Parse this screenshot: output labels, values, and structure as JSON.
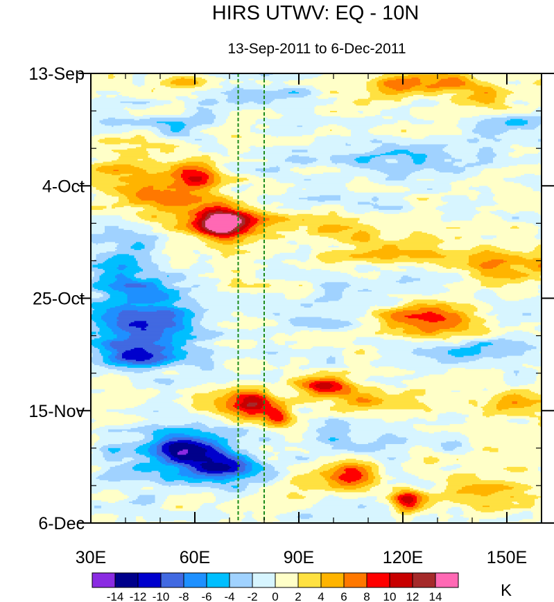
{
  "chart_data": {
    "type": "heatmap",
    "title": "HIRS UTWV: EQ - 10N",
    "subtitle": "13-Sep-2011 to 6-Dec-2011",
    "xlabel": "",
    "ylabel": "",
    "x_range": [
      30,
      160
    ],
    "x_ticks": [
      {
        "value": 30,
        "label": "30E"
      },
      {
        "value": 60,
        "label": "60E"
      },
      {
        "value": 90,
        "label": "90E"
      },
      {
        "value": 120,
        "label": "120E"
      },
      {
        "value": 150,
        "label": "150E"
      }
    ],
    "y_range_days": [
      0,
      84
    ],
    "y_direction": "time increases downward",
    "y_ticks": [
      {
        "day": 0,
        "label": "13-Sep"
      },
      {
        "day": 21,
        "label": "4-Oct"
      },
      {
        "day": 42,
        "label": "25-Oct"
      },
      {
        "day": 63,
        "label": "15-Nov"
      },
      {
        "day": 84,
        "label": "6-Dec"
      }
    ],
    "reference_lines": [
      {
        "lon": 72.5,
        "style": "dashed",
        "color": "#1a8a1a"
      },
      {
        "lon": 80,
        "style": "dashed",
        "color": "#1a8a1a"
      }
    ],
    "colorbar": {
      "units": "K",
      "levels": [
        -14,
        -12,
        -10,
        -8,
        -6,
        -4,
        -2,
        0,
        2,
        4,
        6,
        8,
        10,
        12,
        14
      ],
      "labels": [
        "-14",
        "-12",
        "-10",
        "-8",
        "-6",
        "-4",
        "-2",
        "0",
        "2",
        "4",
        "6",
        "8",
        "10",
        "12",
        "14"
      ],
      "colors": [
        "#8a2be2",
        "#00008b",
        "#0000cd",
        "#4169e1",
        "#1e90ff",
        "#00bfff",
        "#a0d2ff",
        "#d7f5ff",
        "#ffffc8",
        "#ffe141",
        "#ffb400",
        "#ff7800",
        "#ff0000",
        "#c80000",
        "#a52a2a",
        "#ff69b4"
      ]
    },
    "anomaly_features": [
      {
        "lon": 68,
        "day": 28,
        "sigma_lon": 5,
        "sigma_day": 2,
        "amp": 15.5
      },
      {
        "lon": 67,
        "day": 28,
        "sigma_lon": 9,
        "sigma_day": 3.5,
        "amp": 3
      },
      {
        "lon": 79,
        "day": 27.5,
        "sigma_lon": 5,
        "sigma_day": 1.2,
        "amp": 4
      },
      {
        "lon": 60,
        "day": 19,
        "sigma_lon": 5,
        "sigma_day": 2,
        "amp": 8.5
      },
      {
        "lon": 52,
        "day": 22,
        "sigma_lon": 9,
        "sigma_day": 4,
        "amp": 5
      },
      {
        "lon": 90,
        "day": 29,
        "sigma_lon": 12,
        "sigma_day": 1.5,
        "amp": 3
      },
      {
        "lon": 128,
        "day": 46,
        "sigma_lon": 10,
        "sigma_day": 2,
        "amp": 9
      },
      {
        "lon": 150,
        "day": 36,
        "sigma_lon": 14,
        "sigma_day": 2.5,
        "amp": 5
      },
      {
        "lon": 118,
        "day": 33,
        "sigma_lon": 18,
        "sigma_day": 3,
        "amp": 3.5
      },
      {
        "lon": 77,
        "day": 61.5,
        "sigma_lon": 4,
        "sigma_day": 2,
        "amp": 11
      },
      {
        "lon": 84,
        "day": 64,
        "sigma_lon": 3,
        "sigma_day": 1.5,
        "amp": 9
      },
      {
        "lon": 66,
        "day": 61,
        "sigma_lon": 7,
        "sigma_day": 2,
        "amp": 5
      },
      {
        "lon": 97,
        "day": 58.5,
        "sigma_lon": 6,
        "sigma_day": 1.2,
        "amp": 9
      },
      {
        "lon": 110,
        "day": 61,
        "sigma_lon": 10,
        "sigma_day": 2,
        "amp": 5
      },
      {
        "lon": 150,
        "day": 62,
        "sigma_lon": 9,
        "sigma_day": 2,
        "amp": 5
      },
      {
        "lon": 103,
        "day": 75,
        "sigma_lon": 6,
        "sigma_day": 2,
        "amp": 9
      },
      {
        "lon": 121,
        "day": 80,
        "sigma_lon": 3,
        "sigma_day": 1.5,
        "amp": 11
      },
      {
        "lon": 143,
        "day": 78,
        "sigma_lon": 10,
        "sigma_day": 2.5,
        "amp": 5
      },
      {
        "lon": 124,
        "day": 2,
        "sigma_lon": 11,
        "sigma_day": 1.5,
        "amp": 7
      },
      {
        "lon": 145,
        "day": 4,
        "sigma_lon": 10,
        "sigma_day": 2,
        "amp": 4
      },
      {
        "lon": 57,
        "day": 1.5,
        "sigma_lon": 4,
        "sigma_day": 1,
        "amp": 4
      },
      {
        "lon": 38,
        "day": 19,
        "sigma_lon": 6,
        "sigma_day": 3,
        "amp": 3
      },
      {
        "lon": 38,
        "day": 62,
        "sigma_lon": 6,
        "sigma_day": 3,
        "amp": 2.5
      },
      {
        "lon": 45,
        "day": 47,
        "sigma_lon": 11,
        "sigma_day": 4,
        "amp": -10
      },
      {
        "lon": 44,
        "day": 53,
        "sigma_lon": 7,
        "sigma_day": 1.5,
        "amp": -9
      },
      {
        "lon": 60,
        "day": 70,
        "sigma_lon": 8,
        "sigma_day": 2,
        "amp": -10
      },
      {
        "lon": 67,
        "day": 74,
        "sigma_lon": 8,
        "sigma_day": 2,
        "amp": -10
      },
      {
        "lon": 48,
        "day": 71,
        "sigma_lon": 10,
        "sigma_day": 4,
        "amp": -4
      },
      {
        "lon": 40,
        "day": 35,
        "sigma_lon": 8,
        "sigma_day": 4,
        "amp": -4
      },
      {
        "lon": 44,
        "day": 40,
        "sigma_lon": 7,
        "sigma_day": 2,
        "amp": -3.5
      },
      {
        "lon": 78,
        "day": 4,
        "sigma_lon": 10,
        "sigma_day": 2,
        "amp": -3.5
      },
      {
        "lon": 55,
        "day": 10,
        "sigma_lon": 9,
        "sigma_day": 1.5,
        "amp": -3
      },
      {
        "lon": 118,
        "day": 16,
        "sigma_lon": 16,
        "sigma_day": 2,
        "amp": -4
      },
      {
        "lon": 150,
        "day": 10,
        "sigma_lon": 9,
        "sigma_day": 2,
        "amp": -3.5
      },
      {
        "lon": 125,
        "day": 38,
        "sigma_lon": 13,
        "sigma_day": 2,
        "amp": -3.5
      },
      {
        "lon": 138,
        "day": 52,
        "sigma_lon": 12,
        "sigma_day": 2,
        "amp": -3
      },
      {
        "lon": 110,
        "day": 68,
        "sigma_lon": 14,
        "sigma_day": 2,
        "amp": -3.5
      },
      {
        "lon": 95,
        "day": 45,
        "sigma_lon": 10,
        "sigma_day": 3,
        "amp": -2.5
      }
    ]
  }
}
